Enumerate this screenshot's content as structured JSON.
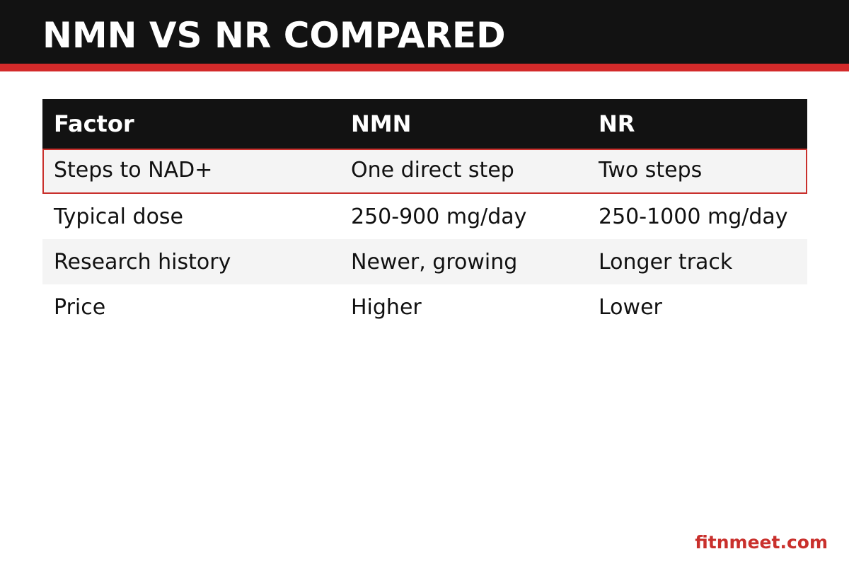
{
  "title": "NMN VS NR COMPARED",
  "colors": {
    "header_bg": "#121212",
    "accent": "#d32a2a",
    "row_shade": "#f4f4f4",
    "brand": "#c9302c"
  },
  "table": {
    "columns": [
      "Factor",
      "NMN",
      "NR"
    ],
    "rows": [
      {
        "factor": "Steps to NAD+",
        "nmn": "One direct step",
        "nr": "Two steps",
        "highlighted": true
      },
      {
        "factor": "Typical dose",
        "nmn": "250-900 mg/day",
        "nr": "250-1000 mg/day"
      },
      {
        "factor": "Research history",
        "nmn": "Newer, growing",
        "nr": "Longer track"
      },
      {
        "factor": "Price",
        "nmn": "Higher",
        "nr": "Lower"
      }
    ]
  },
  "footer": {
    "brand": "fitnmeet.com"
  }
}
